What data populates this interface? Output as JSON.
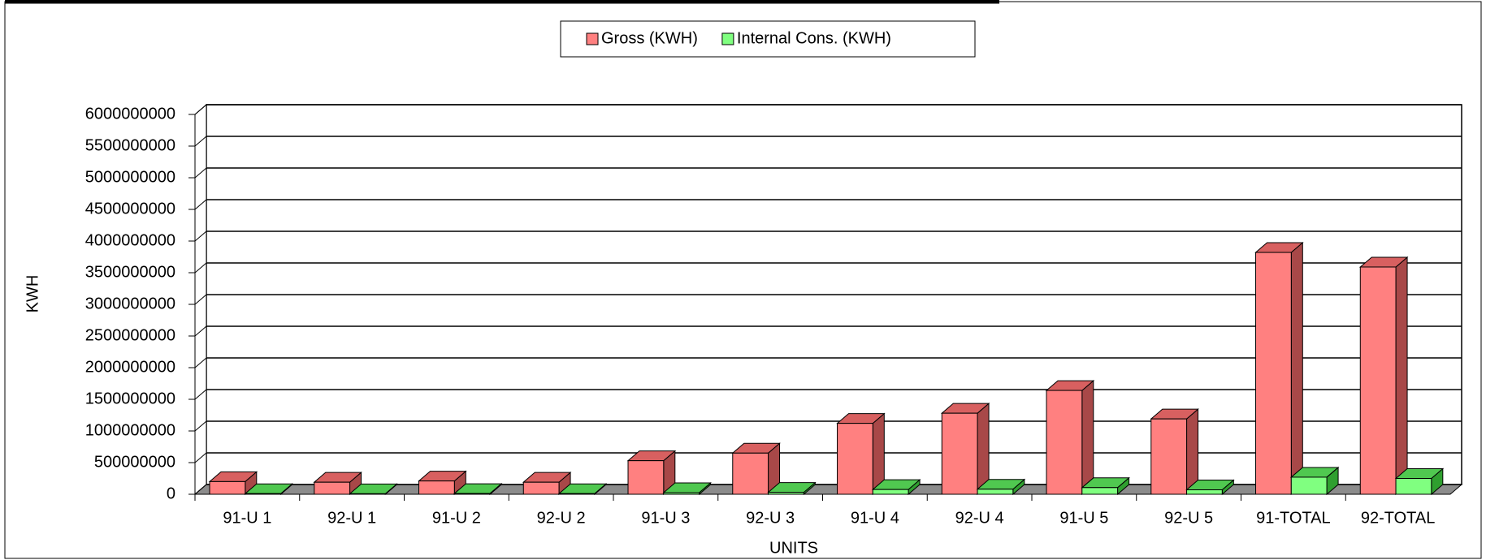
{
  "chart_data": {
    "type": "bar3d",
    "categories": [
      "91-U 1",
      "92-U 1",
      "91-U 2",
      "92-U 2",
      "91-U 3",
      "92-U 3",
      "91-U 4",
      "92-U 4",
      "91-U 5",
      "92-U 5",
      "91-TOTAL",
      "92-TOTAL"
    ],
    "series": [
      {
        "name": "Gross (KWH)",
        "color": "#ff8080",
        "values": [
          200000000,
          190000000,
          210000000,
          190000000,
          530000000,
          650000000,
          1120000000,
          1280000000,
          1640000000,
          1190000000,
          3820000000,
          3590000000
        ]
      },
      {
        "name": "Internal Cons. (KWH)",
        "color": "#80ff80",
        "values": [
          10000000,
          8000000,
          12000000,
          10000000,
          25000000,
          30000000,
          75000000,
          80000000,
          105000000,
          70000000,
          270000000,
          250000000
        ]
      }
    ],
    "ylim": [
      0,
      6000000000
    ],
    "yticks": [
      0,
      500000000,
      1000000000,
      1500000000,
      2000000000,
      2500000000,
      3000000000,
      3500000000,
      4000000000,
      4500000000,
      5000000000,
      5500000000,
      6000000000
    ],
    "y_label": "KWH",
    "x_label": "UNITS",
    "grid": true,
    "legend": "top"
  }
}
